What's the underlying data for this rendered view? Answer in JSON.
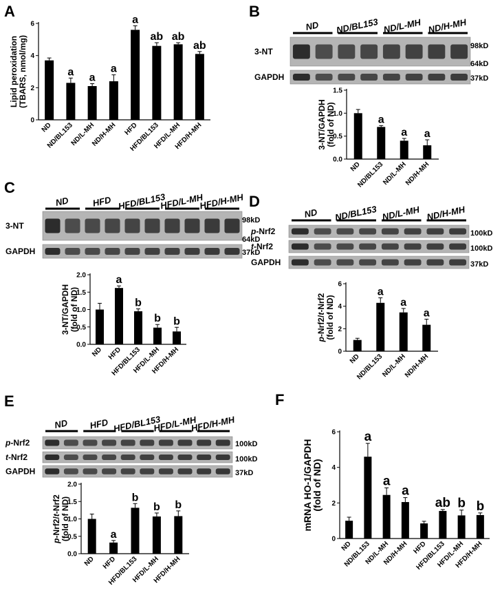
{
  "figure": {
    "panels": [
      {
        "key": "A",
        "letter": "A"
      },
      {
        "key": "B",
        "letter": "B"
      },
      {
        "key": "C",
        "letter": "C"
      },
      {
        "key": "D",
        "letter": "D"
      },
      {
        "key": "E",
        "letter": "E"
      },
      {
        "key": "F",
        "letter": "F"
      }
    ]
  },
  "blots": {
    "B": {
      "groups": [
        "ND",
        "ND/BL153",
        "ND/L-MH",
        "ND/H-MH"
      ],
      "rows": [
        {
          "label": "3-NT",
          "markers": [
            "98kD",
            "64kD"
          ]
        },
        {
          "label": "GAPDH",
          "markers": [
            "37kD"
          ]
        }
      ]
    },
    "C": {
      "groups": [
        "ND",
        "HFD",
        "HFD/BL153",
        "HFD/L-MH",
        "HFD/H-MH"
      ],
      "rows": [
        {
          "label": "3-NT",
          "markers": [
            "98kD",
            "64kD"
          ]
        },
        {
          "label": "GAPDH",
          "markers": [
            "37kD"
          ]
        }
      ]
    },
    "D": {
      "groups": [
        "ND",
        "ND/BL153",
        "ND/L-MH",
        "ND/H-MH"
      ],
      "rows": [
        {
          "prefix": "p",
          "label": "-Nrf2",
          "markers": [
            "100kD"
          ]
        },
        {
          "prefix": "t",
          "label": "-Nrf2",
          "markers": [
            "100kD"
          ]
        },
        {
          "label": "GAPDH",
          "markers": [
            "37kD"
          ]
        }
      ]
    },
    "E": {
      "groups": [
        "ND",
        "HFD",
        "HFD/BL153",
        "HFD/L-MH",
        "HFD/H-MH"
      ],
      "rows": [
        {
          "prefix": "p",
          "label": "-Nrf2",
          "markers": [
            "100kD"
          ]
        },
        {
          "prefix": "t",
          "label": "-Nrf2",
          "markers": [
            "100kD"
          ]
        },
        {
          "label": "GAPDH",
          "markers": [
            "37kD"
          ]
        }
      ]
    }
  },
  "chart_data": [
    {
      "panel": "A",
      "type": "bar",
      "ylabel": "Lipid peroxidation",
      "ylabel2": "(TBARS, nmol/mg)",
      "ylim": [
        0,
        6
      ],
      "yticks": [
        0,
        2,
        4,
        6
      ],
      "ytick_labels": [
        "0",
        "2",
        "4",
        "6"
      ],
      "categories": [
        "ND",
        "ND/BL153",
        "ND/L-MH",
        "ND/H-MH",
        "HFD",
        "HFD/BL153",
        "HFD/L-MH",
        "HFD/H-MH"
      ],
      "values": [
        3.7,
        2.3,
        2.1,
        2.4,
        5.6,
        4.6,
        4.7,
        4.1
      ],
      "errors": [
        0.15,
        0.3,
        0.15,
        0.4,
        0.25,
        0.2,
        0.1,
        0.15
      ],
      "annotations": [
        "",
        "a",
        "a",
        "a",
        "a",
        "ab",
        "ab",
        "ab"
      ]
    },
    {
      "panel": "B",
      "type": "bar",
      "ylabel": "3-NT/GAPDH",
      "ylabel2": "(fold of ND)",
      "ylim": [
        0,
        1.5
      ],
      "yticks": [
        0,
        0.5,
        1.0,
        1.5
      ],
      "ytick_labels": [
        "0.0",
        "0.5",
        "1.0",
        "1.5"
      ],
      "categories": [
        "ND",
        "ND/BL153",
        "ND/L-MH",
        "ND/H-MH"
      ],
      "values": [
        1.0,
        0.7,
        0.4,
        0.3
      ],
      "errors": [
        0.08,
        0.03,
        0.05,
        0.12
      ],
      "annotations": [
        "",
        "a",
        "a",
        "a"
      ]
    },
    {
      "panel": "C",
      "type": "bar",
      "ylabel": "3-NT/GAPDH",
      "ylabel2": "(fold of ND)",
      "ylim": [
        0,
        2.0
      ],
      "yticks": [
        0,
        0.5,
        1.0,
        1.5,
        2.0
      ],
      "ytick_labels": [
        "0.0",
        "0.5",
        "1.0",
        "1.5",
        "2.0"
      ],
      "categories": [
        "ND",
        "HFD",
        "HFD/BL153",
        "HFD/L-MH",
        "HFD/H-MH"
      ],
      "values": [
        1.0,
        1.62,
        0.95,
        0.48,
        0.37
      ],
      "errors": [
        0.18,
        0.06,
        0.07,
        0.09,
        0.12
      ],
      "annotations": [
        "",
        "a",
        "b",
        "b",
        "b"
      ]
    },
    {
      "panel": "D",
      "type": "bar",
      "ylabel_prefix": "p",
      "ylabel": "-Nrf2/",
      "ylabel_prefix2": "t",
      "ylabel_suffix": "-Nrf2",
      "ylabel2": "(fold of ND)",
      "ylim": [
        0,
        6
      ],
      "yticks": [
        0,
        2,
        4,
        6
      ],
      "ytick_labels": [
        "0",
        "2",
        "4",
        "6"
      ],
      "categories": [
        "ND",
        "ND/BL153",
        "ND/L-MH",
        "ND/H-MH"
      ],
      "values": [
        1.0,
        4.3,
        3.45,
        2.35
      ],
      "errors": [
        0.15,
        0.45,
        0.35,
        0.5
      ],
      "annotations": [
        "",
        "a",
        "a",
        "a"
      ]
    },
    {
      "panel": "E",
      "type": "bar",
      "ylabel_prefix": "p",
      "ylabel": "-Nrf2/",
      "ylabel_prefix2": "t",
      "ylabel_suffix": "-Nrf2",
      "ylabel2": "(fold of ND)",
      "ylim": [
        0,
        2.0
      ],
      "yticks": [
        0,
        0.5,
        1.0,
        1.5,
        2.0
      ],
      "ytick_labels": [
        "0.0",
        "0.5",
        "1.0",
        "1.5",
        "2.0"
      ],
      "categories": [
        "ND",
        "HFD",
        "HFD/BL153",
        "HFD/L-MH",
        "HFD/H-MH"
      ],
      "values": [
        1.0,
        0.32,
        1.32,
        1.07,
        1.08
      ],
      "errors": [
        0.14,
        0.06,
        0.12,
        0.1,
        0.15
      ],
      "annotations": [
        "",
        "a",
        "b",
        "b",
        "b"
      ]
    },
    {
      "panel": "F",
      "type": "bar",
      "ylabel": "mRNA HO-1/GAPDH",
      "ylabel2": "(fold of ND)",
      "ylim": [
        0,
        6
      ],
      "yticks": [
        0,
        2,
        4,
        6
      ],
      "ytick_labels": [
        "0",
        "2",
        "4",
        "6"
      ],
      "categories": [
        "ND",
        "ND/BL153",
        "ND/L-MH",
        "ND/H-MH",
        "HFD",
        "HFD/BL153",
        "HFD/L-MH",
        "HFD/H-MH"
      ],
      "values": [
        1.0,
        4.6,
        2.45,
        2.05,
        0.85,
        1.55,
        1.3,
        1.32
      ],
      "errors": [
        0.2,
        0.75,
        0.4,
        0.25,
        0.12,
        0.08,
        0.3,
        0.12
      ],
      "annotations": [
        "",
        "a",
        "a",
        "a",
        "",
        "ab",
        "b",
        "b"
      ]
    }
  ]
}
